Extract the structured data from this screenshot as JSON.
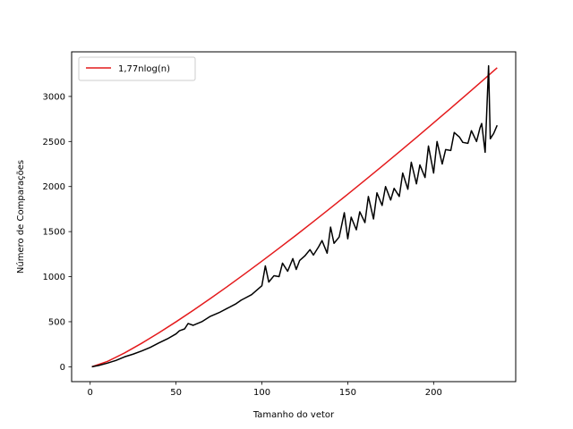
{
  "chart_data": {
    "type": "line",
    "title": "",
    "xlabel": "Tamanho do vetor",
    "ylabel": "Número de Comparações",
    "xlim": [
      -10.8,
      247.8
    ],
    "ylim": [
      -165,
      3495
    ],
    "xticks": [
      0,
      50,
      100,
      150,
      200
    ],
    "yticks": [
      0,
      500,
      1000,
      1500,
      2000,
      2500,
      3000
    ],
    "xtick_labels": [
      "0",
      "50",
      "100",
      "150",
      "200"
    ],
    "ytick_labels": [
      "0",
      "500",
      "1000",
      "1500",
      "2000",
      "2500",
      "3000"
    ],
    "grid": false,
    "legend_position": "top-left",
    "series": [
      {
        "name": "1,77nlog(n)",
        "color": "#e41a1c",
        "legend": true,
        "x": [
          1,
          10,
          20,
          30,
          40,
          50,
          60,
          70,
          80,
          90,
          100,
          110,
          120,
          130,
          140,
          150,
          160,
          170,
          180,
          190,
          200,
          210,
          220,
          230,
          237
        ],
        "y": [
          0,
          59,
          153,
          261,
          377,
          499,
          626,
          757,
          892,
          1031,
          1172,
          1316,
          1462,
          1611,
          1762,
          1915,
          2070,
          2226,
          2385,
          2545,
          2707,
          2870,
          3035,
          3201,
          3318
        ]
      },
      {
        "name": "",
        "color": "#000000",
        "legend": false,
        "x": [
          1,
          5,
          10,
          15,
          20,
          25,
          30,
          35,
          40,
          45,
          50,
          52,
          55,
          57,
          60,
          65,
          70,
          75,
          80,
          85,
          88,
          90,
          94,
          97,
          100,
          102,
          104,
          107,
          110,
          112,
          115,
          118,
          120,
          122,
          125,
          128,
          130,
          133,
          135,
          138,
          140,
          142,
          145,
          148,
          150,
          152,
          155,
          157,
          160,
          162,
          165,
          167,
          170,
          172,
          175,
          177,
          180,
          182,
          185,
          187,
          190,
          192,
          195,
          197,
          200,
          202,
          205,
          207,
          210,
          212,
          215,
          217,
          220,
          222,
          225,
          227,
          228,
          230,
          232,
          233,
          235,
          237
        ],
        "y": [
          0,
          15,
          40,
          70,
          110,
          140,
          175,
          215,
          265,
          310,
          365,
          400,
          420,
          480,
          460,
          500,
          560,
          600,
          650,
          700,
          740,
          760,
          800,
          850,
          900,
          1120,
          940,
          1010,
          1000,
          1150,
          1060,
          1200,
          1080,
          1180,
          1230,
          1300,
          1240,
          1330,
          1400,
          1260,
          1550,
          1370,
          1440,
          1710,
          1420,
          1660,
          1520,
          1720,
          1600,
          1890,
          1640,
          1930,
          1790,
          2000,
          1850,
          1980,
          1890,
          2150,
          1970,
          2270,
          2030,
          2240,
          2100,
          2450,
          2150,
          2500,
          2250,
          2410,
          2400,
          2600,
          2550,
          2490,
          2480,
          2620,
          2500,
          2650,
          2700,
          2380,
          3340,
          2530,
          2590,
          2680
        ]
      }
    ]
  }
}
